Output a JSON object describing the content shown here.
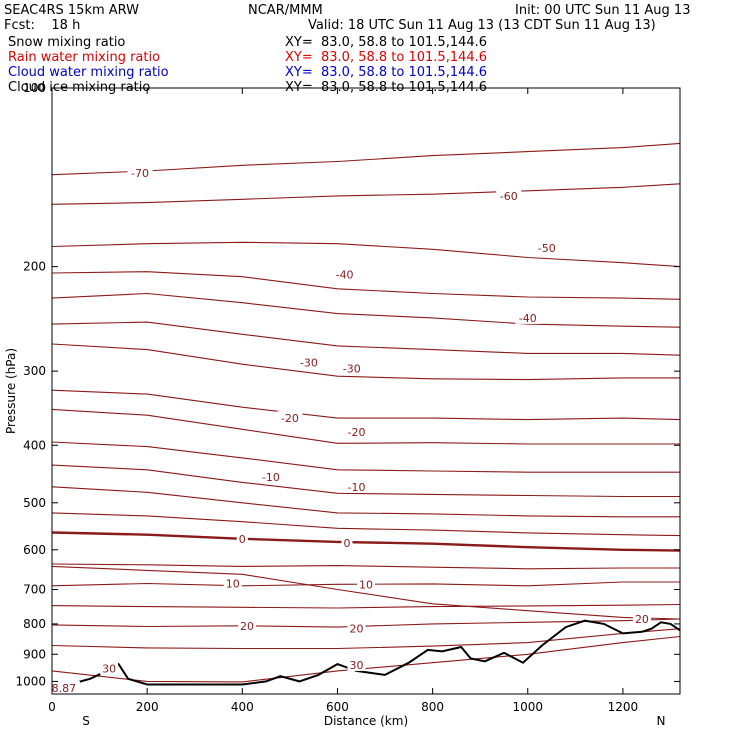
{
  "header": {
    "model": "SEAC4RS 15km ARW",
    "org": "NCAR/MMM",
    "init": "Init: 00 UTC Sun 11 Aug 13",
    "fcst": "Fcst:    18 h",
    "valid": "Valid: 18 UTC Sun 11 Aug 13 (13 CDT Sun 11 Aug 13)"
  },
  "fields": [
    {
      "label": "Snow mixing ratio",
      "xy": "XY=  83.0, 58.8 to 101.5,144.6",
      "color": "#000000"
    },
    {
      "label": "Rain water mixing ratio",
      "xy": "XY=  83.0, 58.8 to 101.5,144.6",
      "color": "#e00000"
    },
    {
      "label": "Cloud water mixing ratio",
      "xy": "XY=  83.0, 58.8 to 101.5,144.6",
      "color": "#0000d0"
    },
    {
      "label": "Cloud ice mixing ratio",
      "xy": "XY=  83.0, 58.8 to 101.5,144.6",
      "color": "#000000"
    }
  ],
  "chart_data": {
    "type": "line",
    "xlabel": "Distance (km)",
    "ylabel": "Pressure (hPa)",
    "xlim": [
      0,
      1320
    ],
    "ylim": [
      100,
      1050
    ],
    "y_scale": "log (pressure)",
    "x_ticks": [
      0,
      200,
      400,
      600,
      800,
      1000,
      1200
    ],
    "y_ticks": [
      100,
      200,
      300,
      400,
      500,
      600,
      700,
      800,
      900,
      1000
    ],
    "end_labels": {
      "left": "S",
      "right": "N"
    },
    "contour_color": "#8b1a1a",
    "isotherms": [
      {
        "label": "-70",
        "x": [
          0,
          200,
          400,
          600,
          800,
          1000,
          1200,
          1320
        ],
        "p": [
          140,
          138,
          135,
          133,
          130,
          128,
          126,
          124
        ],
        "label_at": 180
      },
      {
        "label": "-60",
        "x": [
          0,
          200,
          400,
          600,
          800,
          1000,
          1200,
          1320
        ],
        "p": [
          157,
          156,
          154,
          152,
          151,
          149,
          147,
          145
        ],
        "label_at": 950
      },
      {
        "label": "-50",
        "x": [
          0,
          200,
          400,
          600,
          800,
          1000,
          1200,
          1320
        ],
        "p": [
          185,
          183,
          182,
          183,
          187,
          193,
          197,
          200
        ],
        "label_at": 1040
      },
      {
        "label": "-40",
        "x": [
          0,
          200,
          400,
          600,
          800,
          1000,
          1200,
          1320
        ],
        "p": [
          226,
          222,
          230,
          240,
          244,
          250,
          252,
          253
        ],
        "label_at": 1000
      },
      {
        "label": "-40",
        "x": [
          0,
          200,
          400,
          600,
          800,
          1000,
          1200,
          1320
        ],
        "p": [
          205,
          204,
          208,
          218,
          222,
          225,
          226,
          227
        ],
        "label_at": 600
      },
      {
        "label": "-30",
        "x": [
          0,
          200,
          400,
          600,
          800,
          1000,
          1200,
          1320
        ],
        "p": [
          270,
          276,
          292,
          306,
          309,
          310,
          308,
          308
        ],
        "label_at": 530
      },
      {
        "label": "-20",
        "x": [
          0,
          200,
          400,
          600,
          800,
          1000,
          1200,
          1320
        ],
        "p": [
          348,
          356,
          376,
          397,
          396,
          398,
          398,
          398
        ],
        "label_at": 460
      },
      {
        "label": "-10",
        "x": [
          0,
          200,
          400,
          600,
          800,
          1000,
          1200,
          1320
        ],
        "p": [
          432,
          440,
          462,
          482,
          484,
          486,
          488,
          488
        ],
        "label_at": 460
      },
      {
        "label": "0",
        "x": [
          0,
          200,
          400,
          600,
          800,
          1000,
          1200,
          1320
        ],
        "p": [
          561,
          566,
          575,
          582,
          586,
          594,
          600,
          602
        ],
        "label_at": 400,
        "bold": true
      },
      {
        "label": "10",
        "x": [
          0,
          200,
          400,
          600,
          800,
          1000,
          1200,
          1320
        ],
        "p": [
          690,
          684,
          690,
          686,
          685,
          690,
          680,
          680
        ],
        "label_at": 400
      },
      {
        "label": "20",
        "x": [
          0,
          200,
          400,
          600,
          800,
          1000,
          1200,
          1320
        ],
        "p": [
          803,
          808,
          806,
          810,
          800,
          795,
          790,
          785
        ],
        "label_at": 400
      },
      {
        "label": "30",
        "x": [
          0,
          200,
          400,
          600,
          800,
          1000,
          1200,
          1320
        ],
        "p": [
          960,
          1000,
          1002,
          960,
          930,
          900,
          860,
          840
        ],
        "label_at": 60
      }
    ],
    "terrain": {
      "x": [
        0,
        40,
        80,
        110,
        140,
        160,
        200,
        300,
        400,
        450,
        480,
        520,
        560,
        600,
        640,
        700,
        750,
        790,
        820,
        860,
        880,
        910,
        950,
        990,
        1030,
        1080,
        1120,
        1160,
        1200,
        1240,
        1260,
        1280,
        1300,
        1320
      ],
      "p": [
        1013,
        1010,
        990,
        965,
        935,
        990,
        1012,
        1012,
        1012,
        1000,
        980,
        1000,
        975,
        935,
        960,
        975,
        930,
        885,
        890,
        875,
        915,
        925,
        895,
        930,
        870,
        810,
        790,
        800,
        830,
        825,
        815,
        795,
        800,
        820
      ]
    },
    "annotations": [
      {
        "text": "-70",
        "x": 185,
        "p": 139
      },
      {
        "text": "-60",
        "x": 960,
        "p": 152
      },
      {
        "text": "-50",
        "x": 1040,
        "p": 186
      },
      {
        "text": "-40",
        "x": 615,
        "p": 206
      },
      {
        "text": "-40",
        "x": 1000,
        "p": 244
      },
      {
        "text": "-30",
        "x": 540,
        "p": 290
      },
      {
        "text": "-30",
        "x": 630,
        "p": 297
      },
      {
        "text": "-20",
        "x": 500,
        "p": 360
      },
      {
        "text": "-20",
        "x": 640,
        "p": 380
      },
      {
        "text": "-10",
        "x": 460,
        "p": 452
      },
      {
        "text": "-10",
        "x": 640,
        "p": 470
      },
      {
        "text": "0",
        "x": 400,
        "p": 575
      },
      {
        "text": "0",
        "x": 620,
        "p": 584
      },
      {
        "text": "10",
        "x": 380,
        "p": 684
      },
      {
        "text": "10",
        "x": 660,
        "p": 686
      },
      {
        "text": "20",
        "x": 410,
        "p": 806
      },
      {
        "text": "20",
        "x": 640,
        "p": 814
      },
      {
        "text": "20",
        "x": 1240,
        "p": 785
      },
      {
        "text": "30",
        "x": 120,
        "p": 952
      },
      {
        "text": "30",
        "x": 640,
        "p": 938
      },
      {
        "text": "8.87",
        "x": 25,
        "p": 1026
      }
    ]
  }
}
